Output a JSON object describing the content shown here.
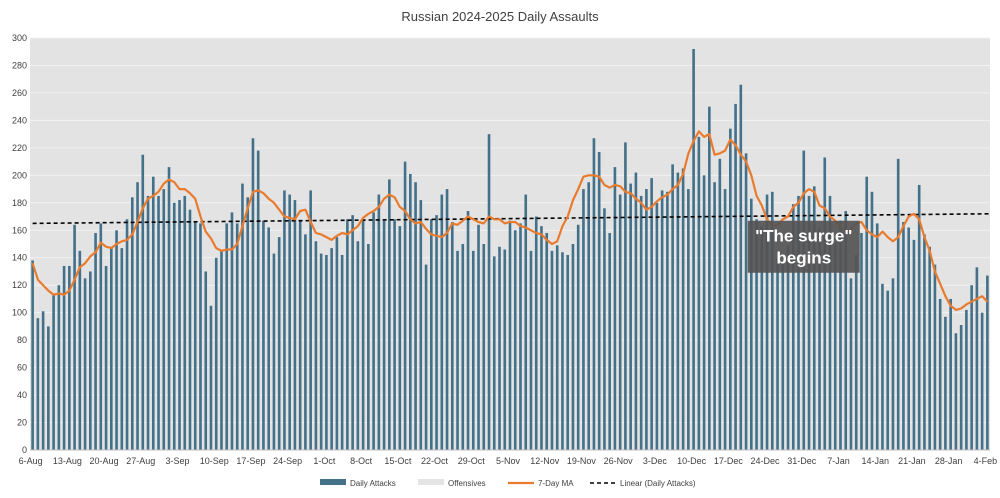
{
  "chart_data": {
    "type": "bar",
    "title": "Russian 2024-2025 Daily Assaults",
    "xlabel": "",
    "ylabel": "",
    "ylim": [
      0,
      300
    ],
    "y_tick_step": 20,
    "grid": true,
    "legend_position": "bottom",
    "x_start_date": "2024-08-06",
    "x_tick_labels": [
      "6-Aug",
      "13-Aug",
      "20-Aug",
      "27-Aug",
      "3-Sep",
      "10-Sep",
      "17-Sep",
      "24-Sep",
      "1-Oct",
      "8-Oct",
      "15-Oct",
      "22-Oct",
      "29-Oct",
      "5-Nov",
      "12-Nov",
      "19-Nov",
      "26-Nov",
      "3-Dec",
      "10-Dec",
      "17-Dec",
      "24-Dec",
      "31-Dec",
      "7-Jan",
      "14-Jan",
      "21-Jan",
      "28-Jan",
      "4-Feb"
    ],
    "series": [
      {
        "name": "Daily Attacks",
        "type": "bar",
        "color": "#44718a",
        "values": [
          138,
          96,
          101,
          90,
          114,
          120,
          134,
          134,
          164,
          145,
          125,
          130,
          158,
          165,
          134,
          148,
          160,
          147,
          168,
          184,
          195,
          215,
          185,
          199,
          185,
          190,
          206,
          180,
          182,
          185,
          175,
          166,
          165,
          130,
          105,
          140,
          146,
          165,
          173,
          165,
          194,
          184,
          227,
          218,
          167,
          162,
          143,
          155,
          189,
          186,
          182,
          167,
          157,
          189,
          152,
          143,
          142,
          147,
          155,
          142,
          168,
          171,
          152,
          167,
          150,
          173,
          186,
          167,
          197,
          168,
          163,
          210,
          201,
          195,
          182,
          135,
          168,
          171,
          186,
          190,
          166,
          145,
          150,
          174,
          145,
          164,
          150,
          230,
          141,
          148,
          146,
          167,
          160,
          165,
          186,
          145,
          170,
          163,
          158,
          145,
          149,
          144,
          142,
          150,
          164,
          190,
          195,
          227,
          217,
          176,
          158,
          206,
          186,
          224,
          194,
          202,
          185,
          190,
          198,
          180,
          189,
          188,
          208,
          202,
          205,
          190,
          292,
          228,
          200,
          250,
          195,
          212,
          190,
          234,
          252,
          266,
          216,
          183,
          168,
          163,
          186,
          188,
          140,
          138,
          149,
          179,
          185,
          218,
          185,
          192,
          162,
          213,
          185,
          151,
          167,
          174,
          125,
          142,
          158,
          199,
          188,
          165,
          121,
          116,
          125,
          212,
          166,
          162,
          153,
          193,
          157,
          148,
          135,
          110,
          97,
          110,
          85,
          91,
          102,
          120,
          133,
          100,
          127
        ]
      },
      {
        "name": "Offensives",
        "type": "bar",
        "color": "#e4e4e4",
        "values": [
          0,
          0,
          0,
          0,
          0,
          0,
          0,
          0,
          0,
          0,
          0,
          0,
          0,
          0,
          0,
          0,
          0,
          0,
          0,
          0,
          0,
          0,
          0,
          0,
          0,
          0,
          0,
          0,
          0,
          0,
          0,
          0,
          0,
          0,
          0,
          0,
          0,
          0,
          0,
          0,
          0,
          0,
          0,
          0,
          0,
          0,
          0,
          0,
          0,
          0,
          0,
          0,
          0,
          0,
          0,
          0,
          0,
          0,
          0,
          0,
          0,
          0,
          0,
          0,
          0,
          0,
          0,
          0,
          0,
          0,
          0,
          0,
          0,
          0,
          0,
          0,
          0,
          0,
          0,
          0,
          0,
          0,
          0,
          0,
          0,
          0,
          0,
          0,
          0,
          0,
          0,
          0,
          0,
          0,
          0,
          0,
          0,
          0,
          0,
          0,
          0,
          0,
          0,
          0,
          0,
          0,
          0,
          0,
          0,
          0,
          0,
          0,
          0,
          0,
          0,
          0,
          0,
          0,
          0,
          0,
          0,
          0,
          0,
          0,
          0,
          0,
          0,
          0,
          0,
          0,
          0,
          0,
          0,
          0,
          0,
          0,
          0,
          0,
          0,
          0,
          0,
          0,
          0,
          0,
          0,
          0,
          0,
          0,
          0,
          0,
          0,
          0,
          0,
          0,
          0,
          0,
          0,
          0,
          0,
          0,
          0,
          0,
          0,
          0,
          0,
          0,
          0,
          0,
          0,
          0,
          0,
          0,
          0,
          0,
          0,
          0,
          0,
          0,
          0,
          0,
          0,
          0,
          0
        ]
      },
      {
        "name": "7-Day MA",
        "type": "line",
        "color": "#e97b2e",
        "values": [
          136,
          124,
          120,
          116,
          113,
          114,
          113,
          116,
          124,
          133,
          136,
          141,
          144,
          151,
          148,
          147,
          150,
          152,
          153,
          157,
          166,
          176,
          183,
          185,
          188,
          194,
          197,
          195,
          190,
          190,
          187,
          183,
          170,
          159,
          154,
          147,
          145,
          146,
          146,
          150,
          163,
          176,
          188,
          189,
          187,
          183,
          180,
          175,
          170,
          169,
          168,
          174,
          175,
          166,
          158,
          157,
          155,
          153,
          156,
          158,
          157,
          160,
          163,
          169,
          172,
          174,
          177,
          183,
          186,
          184,
          177,
          174,
          168,
          165,
          166,
          161,
          157,
          156,
          155,
          158,
          165,
          164,
          167,
          170,
          168,
          166,
          165,
          170,
          168,
          168,
          165,
          166,
          166,
          163,
          162,
          160,
          158,
          157,
          153,
          150,
          152,
          163,
          170,
          182,
          190,
          199,
          200,
          200,
          199,
          193,
          191,
          193,
          192,
          188,
          187,
          183,
          180,
          175,
          177,
          181,
          184,
          186,
          190,
          193,
          201,
          216,
          225,
          232,
          228,
          230,
          215,
          216,
          218,
          226,
          222,
          215,
          210,
          200,
          185,
          178,
          168,
          163,
          164,
          168,
          170,
          177,
          180,
          187,
          190,
          188,
          178,
          176,
          170,
          167,
          163,
          158,
          161,
          165,
          166,
          160,
          157,
          155,
          159,
          155,
          152,
          155,
          163,
          170,
          172,
          168,
          155,
          145,
          130,
          121,
          112,
          105,
          102,
          103,
          106,
          108,
          110,
          112,
          108
        ]
      },
      {
        "name": "Linear (Daily Attacks)",
        "type": "trendline",
        "color": "#000000",
        "start": 165,
        "end": 172
      }
    ],
    "annotations": [
      {
        "text_lines": [
          "\"The surge\"",
          "begins"
        ],
        "x_index": 147,
        "y": 148
      }
    ]
  }
}
